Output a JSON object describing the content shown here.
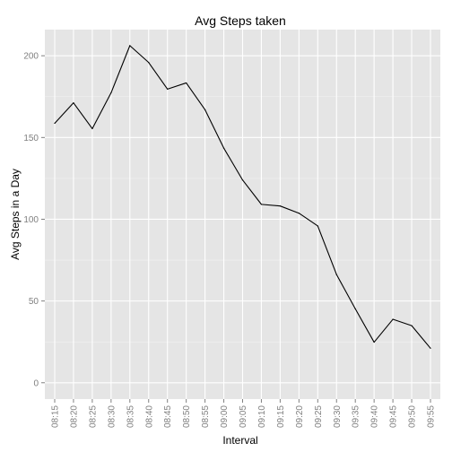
{
  "chart_data": {
    "type": "line",
    "title": "Avg Steps taken",
    "xlabel": "Interval",
    "ylabel": "Avg Steps in a Day",
    "categories": [
      "08:15",
      "08:20",
      "08:25",
      "08:30",
      "08:35",
      "08:40",
      "08:45",
      "08:50",
      "08:55",
      "09:00",
      "09:05",
      "09:10",
      "09:15",
      "09:20",
      "09:25",
      "09:30",
      "09:35",
      "09:40",
      "09:45",
      "09:50",
      "09:55"
    ],
    "series": [
      {
        "values": [
          158.7,
          171.2,
          155.4,
          177.3,
          206.2,
          195.9,
          179.6,
          183.4,
          167.0,
          143.5,
          124.0,
          109.1,
          108.1,
          103.7,
          95.9,
          66.2,
          45.2,
          24.8,
          38.8,
          34.9,
          21.1
        ]
      }
    ],
    "yticks": [
      0,
      50,
      100,
      150,
      200
    ],
    "ylim": [
      -10,
      216
    ],
    "grid": true,
    "colors": {
      "panel": "#e5e5e5",
      "grid_major": "#ffffff",
      "grid_minor": "#f2f2f2",
      "line": "#000000",
      "tick_label": "#7f7f7f"
    }
  }
}
